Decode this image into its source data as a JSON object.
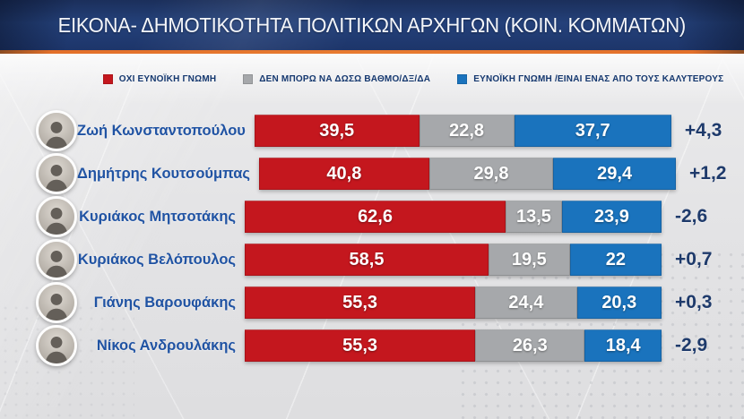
{
  "header": {
    "title": "ΕΙΚΟΝΑ- ΔΗΜΟΤΙΚΟΤΗΤΑ ΠΟΛΙΤΙΚΩΝ ΑΡΧΗΓΩΝ (ΚΟΙΝ. ΚΟΜΜΑΤΩΝ)"
  },
  "colors": {
    "negative": "#c4171e",
    "neutral": "#a6a8ab",
    "positive": "#1a73bd",
    "accent_orange": "#e3702a",
    "header_navy": "#24417a",
    "name_blue": "#2053a3",
    "delta_navy": "#1e3a6b"
  },
  "legend": [
    {
      "label": "ΟΧΙ ΕΥΝΟΪΚΗ ΓΝΩΜΗ",
      "color": "#c4171e"
    },
    {
      "label": "ΔΕΝ ΜΠΟΡΩ ΝΑ ΔΩΣΩ ΒΑΘΜΟ/ΔΞ/ΔΑ",
      "color": "#a6a8ab"
    },
    {
      "label": "ΕΥΝΟΪΚΗ ΓΝΩΜΗ /ΕΙΝΑΙ ΕΝΑΣ ΑΠΟ ΤΟΥΣ ΚΑΛΥΤΕΡΟΥΣ",
      "color": "#1a73bd"
    }
  ],
  "rows": [
    {
      "name": "Ζωή Κωνσταντοπούλου",
      "segments": [
        {
          "label": "39,5",
          "value": 39.5
        },
        {
          "label": "22,8",
          "value": 22.8
        },
        {
          "label": "37,7",
          "value": 37.7
        }
      ],
      "delta": "+4,3"
    },
    {
      "name": "Δημήτρης Κουτσούμπας",
      "segments": [
        {
          "label": "40,8",
          "value": 40.8
        },
        {
          "label": "29,8",
          "value": 29.8
        },
        {
          "label": "29,4",
          "value": 29.4
        }
      ],
      "delta": "+1,2"
    },
    {
      "name": "Κυριάκος Μητσοτάκης",
      "segments": [
        {
          "label": "62,6",
          "value": 62.6
        },
        {
          "label": "13,5",
          "value": 13.5
        },
        {
          "label": "23,9",
          "value": 23.9
        }
      ],
      "delta": "-2,6"
    },
    {
      "name": "Κυριάκος Βελόπουλος",
      "segments": [
        {
          "label": "58,5",
          "value": 58.5
        },
        {
          "label": "19,5",
          "value": 19.5
        },
        {
          "label": "22",
          "value": 22
        }
      ],
      "delta": "+0,7"
    },
    {
      "name": "Γιάνης Βαρουφάκης",
      "segments": [
        {
          "label": "55,3",
          "value": 55.3
        },
        {
          "label": "24,4",
          "value": 24.4
        },
        {
          "label": "20,3",
          "value": 20.3
        }
      ],
      "delta": "+0,3"
    },
    {
      "name": "Νίκος Ανδρουλάκης",
      "segments": [
        {
          "label": "55,3",
          "value": 55.3
        },
        {
          "label": "26,3",
          "value": 26.3
        },
        {
          "label": "18,4",
          "value": 18.4
        }
      ],
      "delta": "-2,9"
    }
  ],
  "chart_data": {
    "type": "bar",
    "orientation": "horizontal",
    "stacked": true,
    "title": "ΕΙΚΟΝΑ- ΔΗΜΟΤΙΚΟΤΗΤΑ ΠΟΛΙΤΙΚΩΝ ΑΡΧΗΓΩΝ (ΚΟΙΝ. ΚΟΜΜΑΤΩΝ)",
    "categories": [
      "Ζωή Κωνσταντοπούλου",
      "Δημήτρης Κουτσούμπας",
      "Κυριάκος Μητσοτάκης",
      "Κυριάκος Βελόπουλος",
      "Γιάνης Βαρουφάκης",
      "Νίκος Ανδρουλάκης"
    ],
    "series": [
      {
        "name": "ΟΧΙ ΕΥΝΟΪΚΗ ΓΝΩΜΗ",
        "color": "#c4171e",
        "values": [
          39.5,
          40.8,
          62.6,
          58.5,
          55.3,
          55.3
        ]
      },
      {
        "name": "ΔΕΝ ΜΠΟΡΩ ΝΑ ΔΩΣΩ ΒΑΘΜΟ/ΔΞ/ΔΑ",
        "color": "#a6a8ab",
        "values": [
          22.8,
          29.8,
          13.5,
          19.5,
          24.4,
          26.3
        ]
      },
      {
        "name": "ΕΥΝΟΪΚΗ ΓΝΩΜΗ /ΕΙΝΑΙ ΕΝΑΣ ΑΠΟ ΤΟΥΣ ΚΑΛΥΤΕΡΟΥΣ",
        "color": "#1a73bd",
        "values": [
          37.7,
          29.4,
          23.9,
          22,
          20.3,
          18.4
        ]
      }
    ],
    "annotations": {
      "label": "change vs previous",
      "values": [
        "+4,3",
        "+1,2",
        "-2,6",
        "+0,7",
        "+0,3",
        "-2,9"
      ]
    },
    "xlim": [
      0,
      100
    ],
    "value_format": "comma-decimal",
    "legend_position": "top",
    "grid": false
  }
}
